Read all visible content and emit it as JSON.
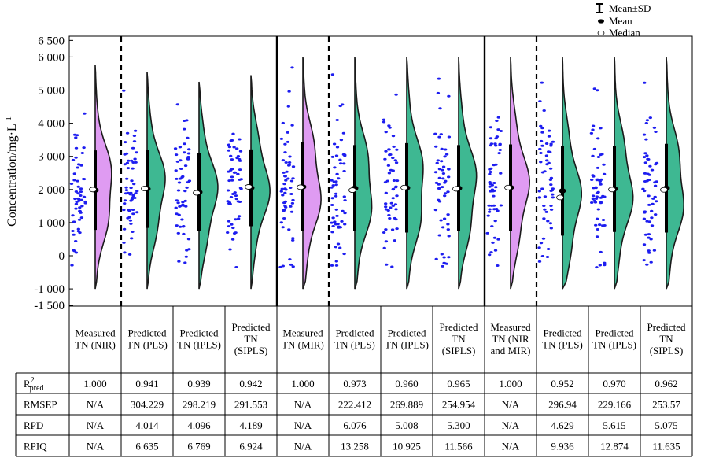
{
  "chart_data": {
    "type": "half-violin with jittered points, mean±SD bars and table",
    "ylabel": "Concentration/mg·L",
    "ylabel_superscript": "-1",
    "ylim": [
      -1500,
      6500
    ],
    "y_ticks": [
      -1500,
      -1000,
      0,
      1000,
      2000,
      3000,
      4000,
      5000,
      6000,
      6500
    ],
    "y_tick_labels": [
      "-1 500",
      "-1 000",
      "0",
      "1 000",
      "2 000",
      "3 000",
      "4 000",
      "5 000",
      "6 000",
      "6 500"
    ],
    "legend": {
      "position": "top-right",
      "items": [
        {
          "symbol": "errorbar",
          "label": "Mean±SD"
        },
        {
          "symbol": "filled-ellipse",
          "label": "Mean"
        },
        {
          "symbol": "open-ellipse",
          "label": "Median"
        }
      ]
    },
    "colors": {
      "measured": "#df9bf2",
      "predicted": "#3eb892",
      "points": "#1d1df0",
      "outline": "#1a1a1a"
    },
    "groups": [
      {
        "label": "Measured TN (NIR)",
        "kind": "measured",
        "mean": 1980,
        "median": 2000,
        "sd": 1200,
        "top": 5750
      },
      {
        "label": "Predicted TN (PLS)",
        "kind": "predicted",
        "mean": 2020,
        "median": 2030,
        "sd": 1180,
        "top": 5550
      },
      {
        "label": "Predicted TN (IPLS)",
        "kind": "predicted",
        "mean": 1920,
        "median": 1900,
        "sd": 1180,
        "top": 5250
      },
      {
        "label": "Predicted TN (SIPLS)",
        "kind": "predicted",
        "mean": 2050,
        "median": 2080,
        "sd": 1160,
        "top": 5450
      },
      {
        "label": "Measured TN (MIR)",
        "kind": "measured",
        "mean": 2080,
        "median": 2070,
        "sd": 1340,
        "top": 6000
      },
      {
        "label": "Predicted TN (PLS)",
        "kind": "predicted",
        "mean": 2040,
        "median": 1980,
        "sd": 1300,
        "top": 6000
      },
      {
        "label": "Predicted TN (IPLS)",
        "kind": "predicted",
        "mean": 2050,
        "median": 2060,
        "sd": 1350,
        "top": 6000
      },
      {
        "label": "Predicted TN (SIPLS)",
        "kind": "predicted",
        "mean": 2040,
        "median": 2020,
        "sd": 1300,
        "top": 6000
      },
      {
        "label": "Measured TN (NIR and MIR)",
        "kind": "measured",
        "mean": 2060,
        "median": 2060,
        "sd": 1300,
        "top": 6000
      },
      {
        "label": "Predicted TN (PLS)",
        "kind": "predicted",
        "mean": 1960,
        "median": 1760,
        "sd": 1350,
        "top": 6000
      },
      {
        "label": "Predicted TN (IPLS)",
        "kind": "predicted",
        "mean": 2020,
        "median": 2000,
        "sd": 1300,
        "top": 6000
      },
      {
        "label": "Predicted TN (SIPLS)",
        "kind": "predicted",
        "mean": 2040,
        "median": 1990,
        "sd": 1340,
        "top": 6000
      }
    ],
    "table": {
      "header_labels": [
        [
          "Measured",
          "TN (NIR)"
        ],
        [
          "Predicted",
          "TN (PLS)"
        ],
        [
          "Predicted",
          "TN (IPLS)"
        ],
        [
          "Predicted",
          "TN",
          "(SIPLS)"
        ],
        [
          "Measured",
          "TN (MIR)"
        ],
        [
          "Predicted",
          "TN (PLS)"
        ],
        [
          "Predicted",
          "TN (IPLS)"
        ],
        [
          "Predicted",
          "TN",
          "(SIPLS)"
        ],
        [
          "Measured",
          "TN (NIR",
          "and MIR)"
        ],
        [
          "Predicted",
          "TN (PLS)"
        ],
        [
          "Predicted",
          "TN (IPLS)"
        ],
        [
          "Predicted",
          "TN",
          "(SIPLS)"
        ]
      ],
      "rows": [
        {
          "name": "R",
          "sup": "2",
          "sub": "pred",
          "values": [
            "1.000",
            "0.941",
            "0.939",
            "0.942",
            "1.000",
            "0.973",
            "0.960",
            "0.965",
            "1.000",
            "0.952",
            "0.970",
            "0.962"
          ]
        },
        {
          "name": "RMSEP",
          "values": [
            "N/A",
            "304.229",
            "298.219",
            "291.553",
            "N/A",
            "222.412",
            "269.889",
            "254.954",
            "N/A",
            "296.94",
            "229.166",
            "253.57"
          ]
        },
        {
          "name": "RPD",
          "values": [
            "N/A",
            "4.014",
            "4.096",
            "4.189",
            "N/A",
            "6.076",
            "5.008",
            "5.300",
            "N/A",
            "4.629",
            "5.615",
            "5.075"
          ]
        },
        {
          "name": "RPIQ",
          "values": [
            "N/A",
            "6.635",
            "6.769",
            "6.924",
            "N/A",
            "13.258",
            "10.925",
            "11.566",
            "N/A",
            "9.936",
            "12.874",
            "11.635"
          ]
        }
      ]
    }
  }
}
